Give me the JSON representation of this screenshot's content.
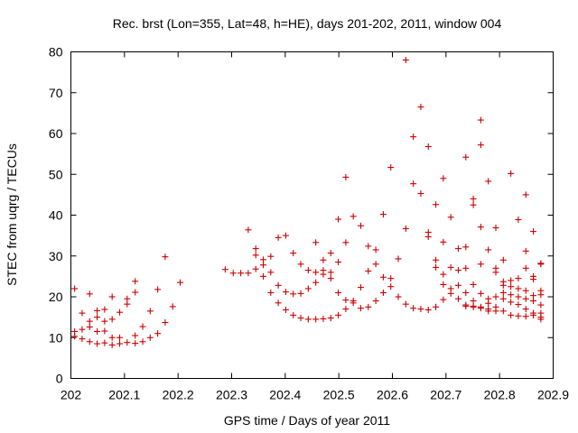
{
  "chart_data": {
    "type": "scatter",
    "title": "Rec. brst (Lon=355, Lat=48, h=HE), days 201-202, 2011, window 004",
    "xlabel": "GPS time / Days of year 2011",
    "ylabel": "STEC from uqrg / TECUs",
    "xlim": [
      202,
      202.9
    ],
    "ylim": [
      0,
      80
    ],
    "xticks": [
      "202",
      "202.1",
      "202.2",
      "202.3",
      "202.4",
      "202.5",
      "202.6",
      "202.7",
      "202.8",
      "202.9"
    ],
    "yticks": [
      "0",
      "10",
      "20",
      "30",
      "40",
      "50",
      "60",
      "70",
      "80"
    ],
    "grid": false,
    "legend": "none",
    "marker": "plus",
    "color": "#cc0000",
    "points": [
      [
        202.007,
        22
      ],
      [
        202.007,
        10.3
      ],
      [
        202.007,
        11.5
      ],
      [
        202.021,
        16
      ],
      [
        202.021,
        9.7
      ],
      [
        202.021,
        12
      ],
      [
        202.035,
        20.7
      ],
      [
        202.035,
        9
      ],
      [
        202.035,
        12.6
      ],
      [
        202.035,
        14
      ],
      [
        202.049,
        16.6
      ],
      [
        202.049,
        8.5
      ],
      [
        202.049,
        11.5
      ],
      [
        202.049,
        15
      ],
      [
        202.063,
        16.9
      ],
      [
        202.063,
        8.7
      ],
      [
        202.063,
        11.6
      ],
      [
        202.063,
        14
      ],
      [
        202.077,
        20
      ],
      [
        202.077,
        8.2
      ],
      [
        202.077,
        10
      ],
      [
        202.077,
        14.5
      ],
      [
        202.091,
        16.2
      ],
      [
        202.091,
        8.5
      ],
      [
        202.091,
        10
      ],
      [
        202.105,
        19.5
      ],
      [
        202.105,
        8.8
      ],
      [
        202.105,
        18.2
      ],
      [
        202.12,
        23.8
      ],
      [
        202.12,
        8.6
      ],
      [
        202.12,
        10.5
      ],
      [
        202.12,
        21.1
      ],
      [
        202.134,
        12.7
      ],
      [
        202.134,
        9
      ],
      [
        202.148,
        16.5
      ],
      [
        202.148,
        10
      ],
      [
        202.162,
        21.8
      ],
      [
        202.162,
        11
      ],
      [
        202.176,
        29.8
      ],
      [
        202.176,
        13.7
      ],
      [
        202.19,
        17.6
      ],
      [
        202.204,
        23.5
      ],
      [
        202.288,
        26.7
      ],
      [
        202.303,
        25.8
      ],
      [
        202.317,
        25.8
      ],
      [
        202.331,
        36.4
      ],
      [
        202.331,
        25.8
      ],
      [
        202.345,
        31.8
      ],
      [
        202.345,
        30.2
      ],
      [
        202.345,
        26.8
      ],
      [
        202.359,
        29.1
      ],
      [
        202.359,
        27.8
      ],
      [
        202.359,
        25
      ],
      [
        202.373,
        29.9
      ],
      [
        202.373,
        26
      ],
      [
        202.373,
        21
      ],
      [
        202.387,
        34.5
      ],
      [
        202.387,
        18.5
      ],
      [
        202.387,
        22.8
      ],
      [
        202.401,
        35
      ],
      [
        202.401,
        16.8
      ],
      [
        202.401,
        21.2
      ],
      [
        202.415,
        30.7
      ],
      [
        202.415,
        15.5
      ],
      [
        202.415,
        20.7
      ],
      [
        202.429,
        28
      ],
      [
        202.429,
        14.8
      ],
      [
        202.429,
        20.8
      ],
      [
        202.443,
        26.5
      ],
      [
        202.443,
        14.5
      ],
      [
        202.443,
        22
      ],
      [
        202.457,
        33.3
      ],
      [
        202.457,
        14.5
      ],
      [
        202.457,
        23.5
      ],
      [
        202.457,
        26
      ],
      [
        202.471,
        29
      ],
      [
        202.471,
        14.6
      ],
      [
        202.471,
        26.5
      ],
      [
        202.471,
        25.5
      ],
      [
        202.485,
        30.7
      ],
      [
        202.485,
        14.8
      ],
      [
        202.485,
        26
      ],
      [
        202.485,
        24.5
      ],
      [
        202.499,
        39
      ],
      [
        202.499,
        15.5
      ],
      [
        202.499,
        21
      ],
      [
        202.499,
        28.5
      ],
      [
        202.513,
        49.3
      ],
      [
        202.513,
        17
      ],
      [
        202.513,
        19.2
      ],
      [
        202.513,
        33.3
      ],
      [
        202.527,
        39.7
      ],
      [
        202.527,
        18.5
      ],
      [
        202.527,
        19
      ],
      [
        202.541,
        37.4
      ],
      [
        202.541,
        17.2
      ],
      [
        202.541,
        22.3
      ],
      [
        202.555,
        32.4
      ],
      [
        202.555,
        17.5
      ],
      [
        202.555,
        26.3
      ],
      [
        202.569,
        31.5
      ],
      [
        202.569,
        19
      ],
      [
        202.569,
        28
      ],
      [
        202.583,
        40.2
      ],
      [
        202.583,
        21
      ],
      [
        202.583,
        24.8
      ],
      [
        202.597,
        51.7
      ],
      [
        202.597,
        22.5
      ],
      [
        202.597,
        24.5
      ],
      [
        202.611,
        29.3
      ],
      [
        202.611,
        20
      ],
      [
        202.625,
        78
      ],
      [
        202.625,
        36.7
      ],
      [
        202.625,
        18.2
      ],
      [
        202.639,
        59.2
      ],
      [
        202.639,
        47.7
      ],
      [
        202.639,
        17.2
      ],
      [
        202.653,
        66.5
      ],
      [
        202.653,
        45.3
      ],
      [
        202.653,
        17
      ],
      [
        202.667,
        56.8
      ],
      [
        202.667,
        35.8
      ],
      [
        202.667,
        34.7
      ],
      [
        202.667,
        16.8
      ],
      [
        202.681,
        42.6
      ],
      [
        202.681,
        29
      ],
      [
        202.681,
        27.2
      ],
      [
        202.681,
        17.5
      ],
      [
        202.695,
        49
      ],
      [
        202.695,
        33.4
      ],
      [
        202.695,
        25.5
      ],
      [
        202.695,
        23
      ],
      [
        202.695,
        19.3
      ],
      [
        202.709,
        39.5
      ],
      [
        202.709,
        27.2
      ],
      [
        202.709,
        22
      ],
      [
        202.709,
        20.8
      ],
      [
        202.723,
        31.8
      ],
      [
        202.723,
        26.5
      ],
      [
        202.723,
        22.8
      ],
      [
        202.723,
        19.5
      ],
      [
        202.737,
        54.2
      ],
      [
        202.737,
        32.2
      ],
      [
        202.737,
        27
      ],
      [
        202.737,
        21
      ],
      [
        202.737,
        18
      ],
      [
        202.737,
        17.7
      ],
      [
        202.751,
        44
      ],
      [
        202.751,
        42.5
      ],
      [
        202.751,
        23
      ],
      [
        202.751,
        19
      ],
      [
        202.751,
        17.7
      ],
      [
        202.751,
        17.5
      ],
      [
        202.765,
        63.3
      ],
      [
        202.765,
        57.2
      ],
      [
        202.765,
        37.1
      ],
      [
        202.765,
        28
      ],
      [
        202.765,
        20.8
      ],
      [
        202.765,
        17.5
      ],
      [
        202.765,
        17.2
      ],
      [
        202.779,
        48.3
      ],
      [
        202.779,
        31.5
      ],
      [
        202.779,
        19.5
      ],
      [
        202.779,
        18.4
      ],
      [
        202.779,
        17
      ],
      [
        202.779,
        16.5
      ],
      [
        202.793,
        36.9
      ],
      [
        202.793,
        27
      ],
      [
        202.793,
        26
      ],
      [
        202.793,
        20
      ],
      [
        202.793,
        17.5
      ],
      [
        202.793,
        16.5
      ],
      [
        202.807,
        29
      ],
      [
        202.807,
        23.7
      ],
      [
        202.807,
        22.8
      ],
      [
        202.807,
        21
      ],
      [
        202.807,
        19.5
      ],
      [
        202.807,
        16.5
      ],
      [
        202.821,
        50.2
      ],
      [
        202.821,
        24
      ],
      [
        202.821,
        22.5
      ],
      [
        202.821,
        20.5
      ],
      [
        202.821,
        18.7
      ],
      [
        202.821,
        15.5
      ],
      [
        202.835,
        38.9
      ],
      [
        202.835,
        24.5
      ],
      [
        202.835,
        22
      ],
      [
        202.835,
        20
      ],
      [
        202.835,
        18.1
      ],
      [
        202.835,
        15.3
      ],
      [
        202.849,
        45
      ],
      [
        202.849,
        31.2
      ],
      [
        202.849,
        27
      ],
      [
        202.849,
        21.5
      ],
      [
        202.849,
        19.5
      ],
      [
        202.849,
        17
      ],
      [
        202.849,
        15.2
      ],
      [
        202.863,
        36
      ],
      [
        202.863,
        25
      ],
      [
        202.863,
        24.3
      ],
      [
        202.863,
        20.3
      ],
      [
        202.863,
        19
      ],
      [
        202.863,
        16
      ],
      [
        202.863,
        15.5
      ],
      [
        202.877,
        28.2
      ],
      [
        202.877,
        28
      ],
      [
        202.877,
        21.5
      ],
      [
        202.877,
        20.5
      ],
      [
        202.877,
        18
      ],
      [
        202.877,
        16
      ],
      [
        202.877,
        15
      ],
      [
        202.877,
        14.5
      ]
    ]
  }
}
